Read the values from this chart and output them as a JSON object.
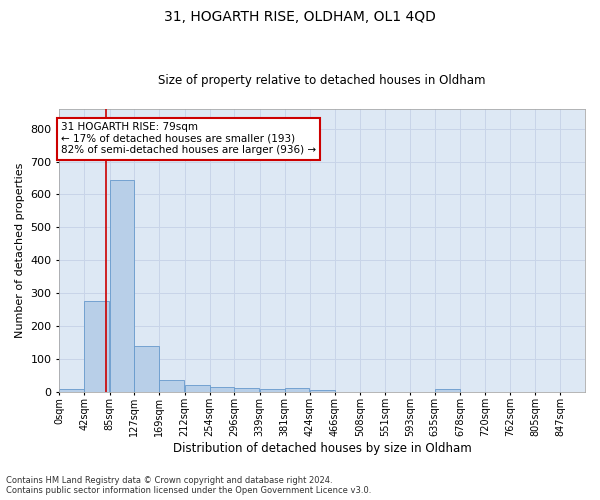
{
  "title": "31, HOGARTH RISE, OLDHAM, OL1 4QD",
  "subtitle": "Size of property relative to detached houses in Oldham",
  "xlabel": "Distribution of detached houses by size in Oldham",
  "ylabel": "Number of detached properties",
  "footnote": "Contains HM Land Registry data © Crown copyright and database right 2024.\nContains public sector information licensed under the Open Government Licence v3.0.",
  "bar_color": "#b8cfe8",
  "bar_edge_color": "#6699cc",
  "grid_color": "#c8d4e8",
  "background_color": "#dde8f4",
  "property_line_x": 79,
  "annotation_text": "31 HOGARTH RISE: 79sqm\n← 17% of detached houses are smaller (193)\n82% of semi-detached houses are larger (936) →",
  "annotation_box_color": "#ffffff",
  "annotation_box_edge": "#cc0000",
  "bin_labels": [
    "0sqm",
    "42sqm",
    "85sqm",
    "127sqm",
    "169sqm",
    "212sqm",
    "254sqm",
    "296sqm",
    "339sqm",
    "381sqm",
    "424sqm",
    "466sqm",
    "508sqm",
    "551sqm",
    "593sqm",
    "635sqm",
    "678sqm",
    "720sqm",
    "762sqm",
    "805sqm",
    "847sqm"
  ],
  "bin_edges": [
    0,
    42,
    85,
    127,
    169,
    212,
    254,
    296,
    339,
    381,
    424,
    466,
    508,
    551,
    593,
    635,
    678,
    720,
    762,
    805,
    847
  ],
  "bar_heights": [
    8,
    275,
    643,
    138,
    35,
    20,
    13,
    11,
    8,
    11,
    6,
    0,
    0,
    0,
    0,
    8,
    0,
    0,
    0,
    0
  ],
  "ylim": [
    0,
    860
  ],
  "yticks": [
    0,
    100,
    200,
    300,
    400,
    500,
    600,
    700,
    800
  ]
}
